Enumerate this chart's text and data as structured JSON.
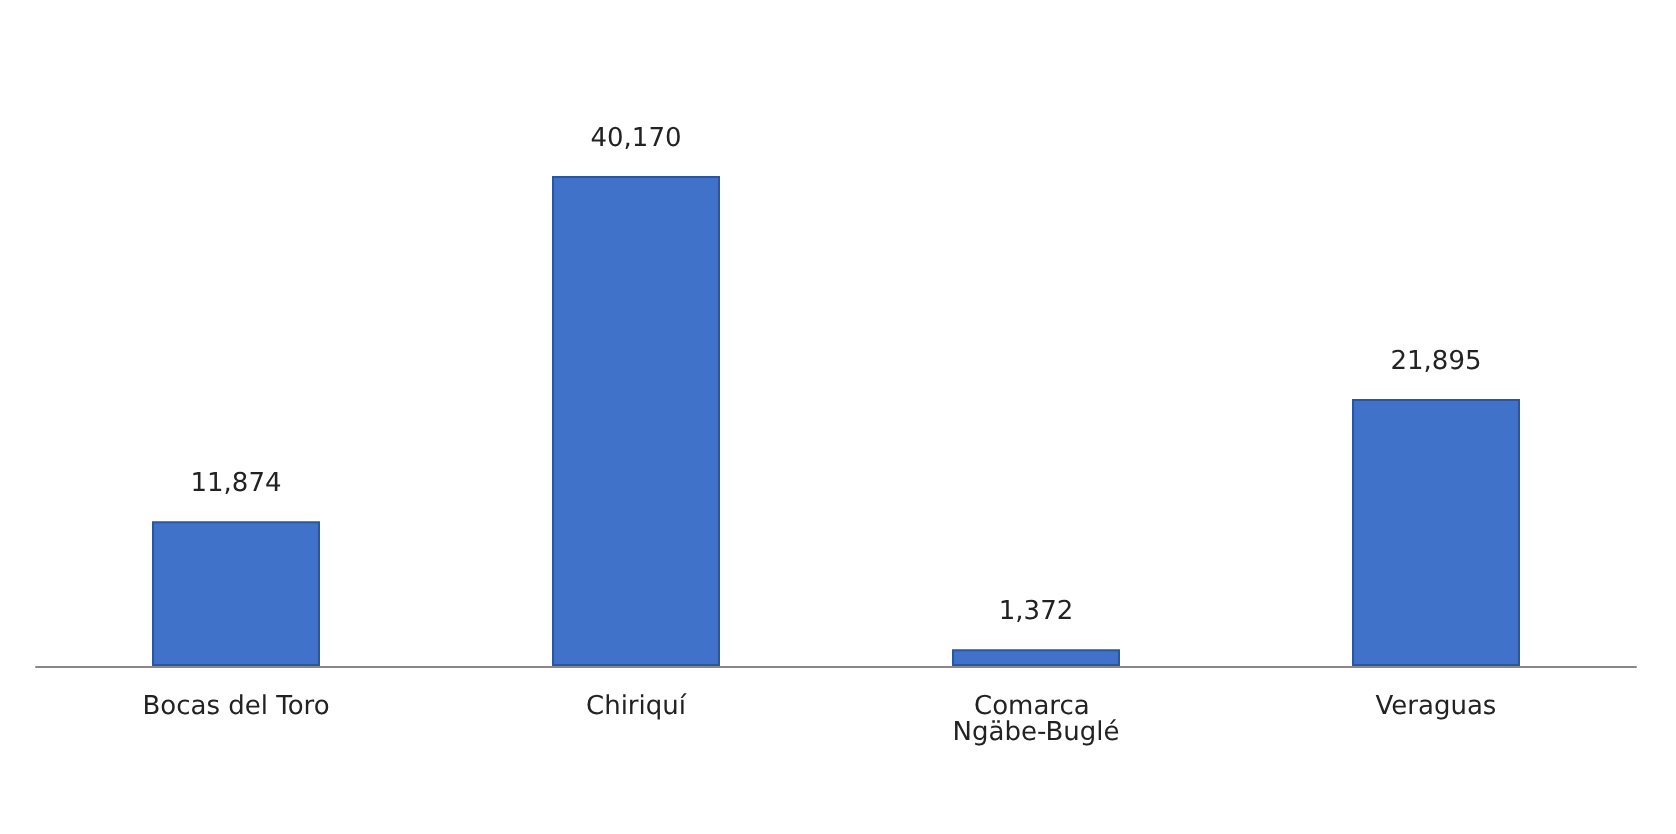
{
  "chart_data": {
    "type": "bar",
    "categories": [
      "Bocas del Toro",
      "Chiriquí",
      "Comarca Ngäbe-Buglé",
      "Veraguas"
    ],
    "values": [
      11874,
      40170,
      1372,
      21895
    ],
    "value_labels": [
      "11,874",
      "40,170",
      "1,372",
      "21,895"
    ],
    "color": "#3f72c8"
  }
}
